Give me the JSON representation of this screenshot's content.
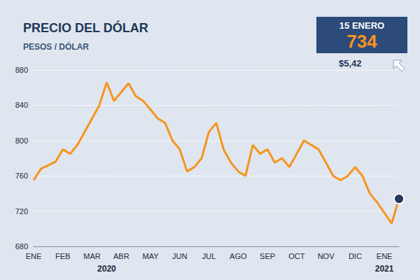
{
  "chart_data": {
    "type": "line",
    "title": "PRECIO DEL DÓLAR",
    "subtitle": "PESOS / DÓLAR",
    "categories": [
      "ENE",
      null,
      null,
      null,
      "FEB",
      null,
      null,
      null,
      "MAR",
      null,
      null,
      null,
      "ABR",
      null,
      null,
      null,
      "MAY",
      null,
      null,
      null,
      "JUN",
      null,
      null,
      null,
      "JUL",
      null,
      null,
      null,
      "AGO",
      null,
      null,
      null,
      "SEP",
      null,
      null,
      null,
      "OCT",
      null,
      null,
      null,
      "NOV",
      null,
      null,
      null,
      "DIC",
      null,
      null,
      null,
      "ENE",
      null,
      null
    ],
    "values": [
      755,
      768,
      772,
      776,
      790,
      785,
      795,
      810,
      825,
      840,
      866,
      845,
      855,
      865,
      850,
      845,
      835,
      825,
      820,
      800,
      790,
      765,
      770,
      780,
      810,
      820,
      790,
      775,
      765,
      760,
      795,
      785,
      790,
      775,
      780,
      770,
      785,
      800,
      795,
      790,
      775,
      760,
      755,
      760,
      770,
      760,
      740,
      730,
      718,
      706,
      734
    ],
    "color": "#f7941d",
    "ylim": [
      680,
      880
    ],
    "yticks": [
      680,
      720,
      760,
      800,
      840,
      880
    ],
    "grid": true,
    "years": [
      "2020",
      "2021"
    ],
    "annotation": {
      "date": "15 ENERO",
      "value": 734,
      "change": "$5,42"
    }
  }
}
